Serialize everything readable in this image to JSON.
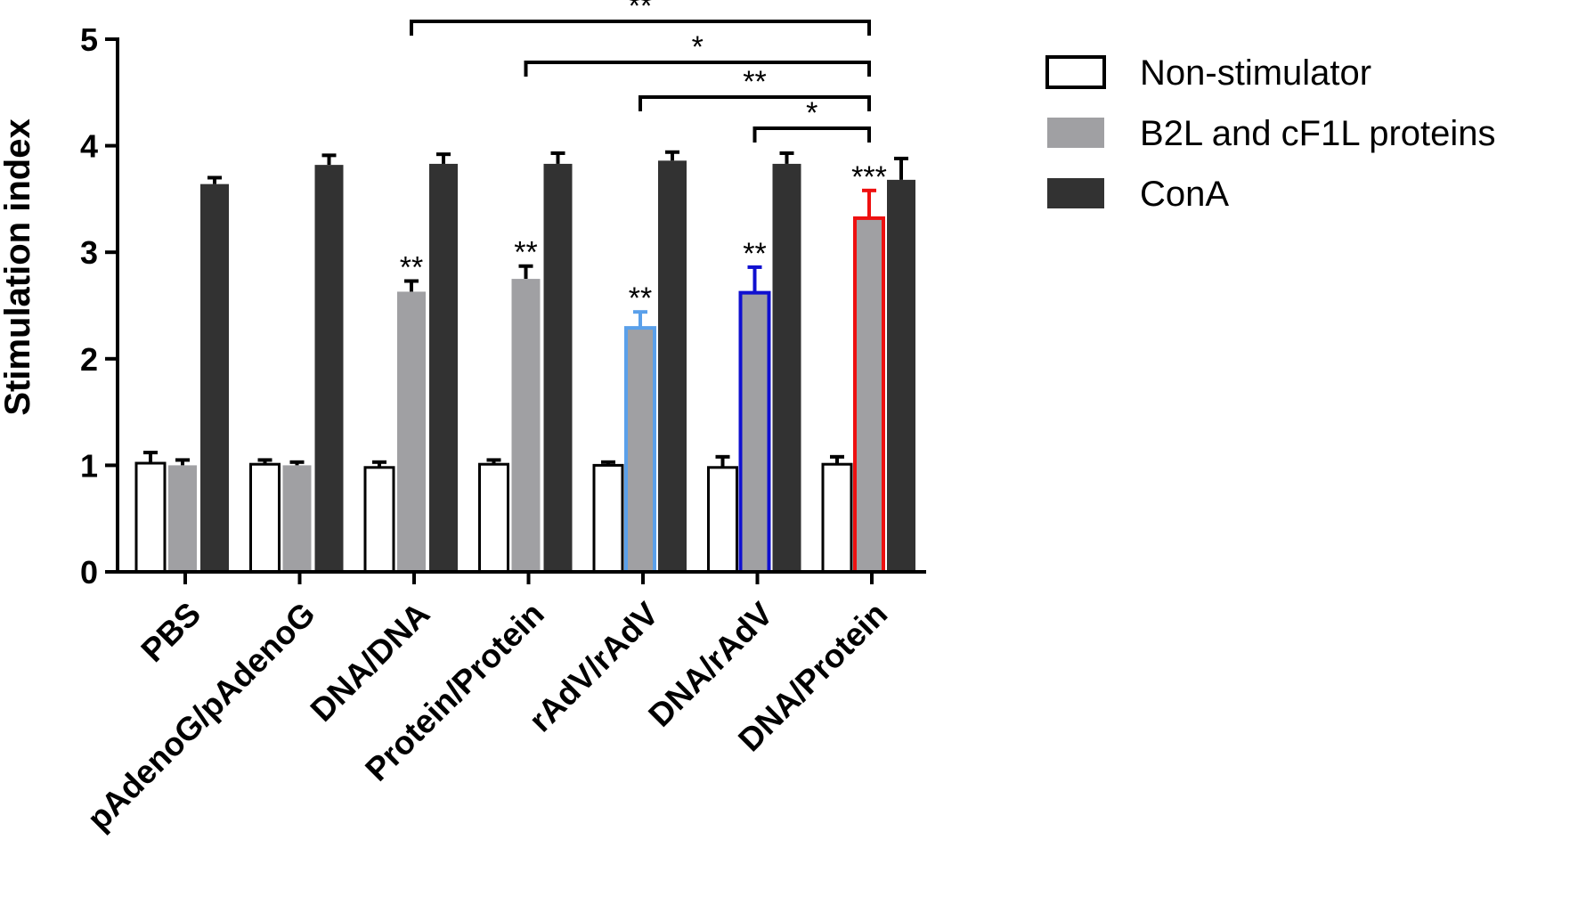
{
  "chart_data": {
    "type": "bar",
    "ylabel": "Stimulation index",
    "xlabel": "",
    "ylim": [
      0,
      5
    ],
    "yticks": [
      "0",
      "1",
      "2",
      "3",
      "4",
      "5"
    ],
    "categories": [
      "PBS",
      "pAdenoG/pAdenoG",
      "DNA/DNA",
      "Protein/Protein",
      "rAdV/rAdV",
      "DNA/rAdV",
      "DNA/Protein"
    ],
    "series": [
      {
        "name": "Non-stimulator",
        "fill": "#ffffff",
        "values": [
          1.02,
          1.01,
          0.98,
          1.01,
          1.0,
          0.98,
          1.01
        ],
        "errors": [
          0.1,
          0.04,
          0.05,
          0.04,
          0.03,
          0.1,
          0.07
        ]
      },
      {
        "name": "B2L and cF1L proteins",
        "fill": "#a0a0a3",
        "values": [
          1.0,
          1.0,
          2.63,
          2.75,
          2.29,
          2.62,
          3.32
        ],
        "errors": [
          0.05,
          0.03,
          0.1,
          0.12,
          0.15,
          0.24,
          0.26
        ],
        "outlines": [
          "",
          "",
          "",
          "",
          "#5aa0ea",
          "#1010d0",
          "#ee1010"
        ],
        "annotations": [
          "",
          "",
          "**",
          "**",
          "**",
          "**",
          "***"
        ]
      },
      {
        "name": "ConA",
        "fill": "#323232",
        "values": [
          3.64,
          3.82,
          3.83,
          3.83,
          3.86,
          3.83,
          3.68
        ],
        "errors": [
          0.06,
          0.09,
          0.09,
          0.1,
          0.08,
          0.1,
          0.2
        ]
      }
    ],
    "comparisons": [
      {
        "from": "DNA/DNA",
        "to": "DNA/Protein",
        "label": "**"
      },
      {
        "from": "Protein/Protein",
        "to": "DNA/Protein",
        "label": "*"
      },
      {
        "from": "rAdV/rAdV",
        "to": "DNA/Protein",
        "label": "**"
      },
      {
        "from": "DNA/rAdV",
        "to": "DNA/Protein",
        "label": "*"
      }
    ],
    "legend": {
      "position": "top-right"
    }
  }
}
